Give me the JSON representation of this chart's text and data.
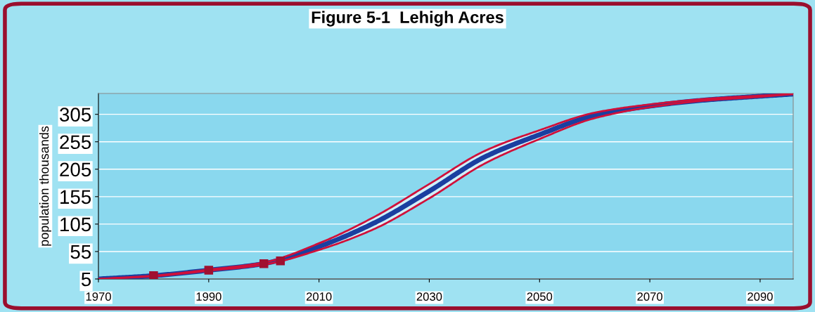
{
  "chart_data": {
    "type": "line",
    "title": "Figure 5-1  Lehigh Acres",
    "ylabel": "population thousands",
    "x": [
      1970,
      1980,
      1990,
      2000,
      2010,
      2020,
      2030,
      2040,
      2050,
      2060,
      2070,
      2080,
      2090,
      2096
    ],
    "series": [
      {
        "color": "#1a3fa0",
        "values": [
          5,
          11,
          21,
          33,
          64,
          107,
          165,
          227,
          268,
          303,
          320,
          331,
          338,
          342
        ],
        "upper": [
          5,
          11,
          22,
          35,
          70,
          118,
          178,
          238,
          276,
          308,
          323,
          333,
          339,
          342
        ],
        "lower": [
          5,
          10,
          20,
          31,
          58,
          96,
          152,
          215,
          260,
          298,
          318,
          330,
          337,
          342
        ]
      },
      {
        "type": "scatter",
        "color": "#a01030",
        "marker": "square",
        "x": [
          1980,
          1990,
          2000,
          2003
        ],
        "values": [
          11,
          21,
          33,
          38
        ]
      }
    ],
    "xlim": [
      1970,
      2096
    ],
    "xticks": [
      1970,
      1990,
      2010,
      2030,
      2050,
      2070,
      2090
    ],
    "ylim": [
      5,
      343
    ],
    "yticks": [
      5,
      55,
      105,
      155,
      205,
      255,
      305
    ],
    "grid": "y",
    "marker": "none",
    "line_style": "solid",
    "legend": false
  }
}
